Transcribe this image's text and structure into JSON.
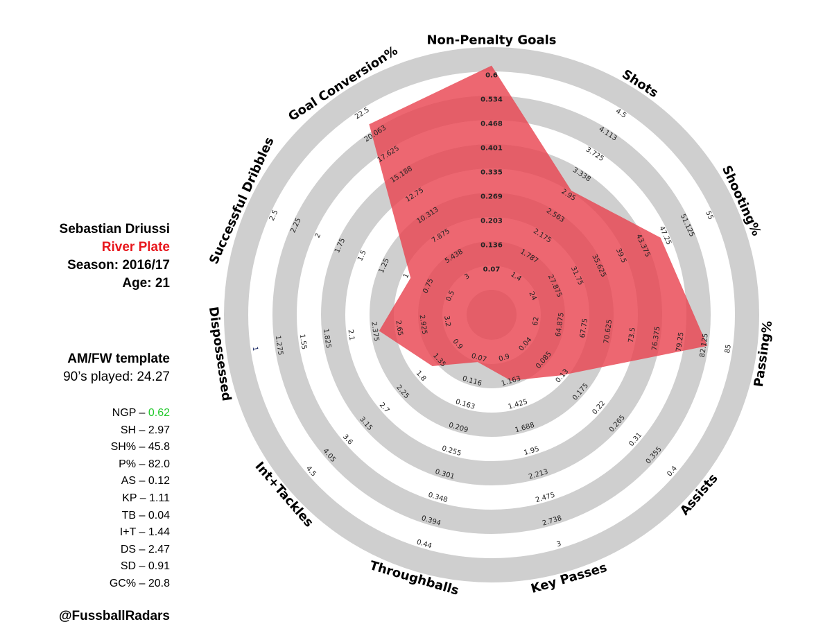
{
  "player": {
    "name": "Sebastian Driussi",
    "club": "River Plate",
    "season": "Season: 2016/17",
    "age": "Age: 21",
    "template": "AM/FW template",
    "played": "90’s played: 24.27"
  },
  "stats": [
    {
      "label": "NGP – ",
      "value": "0.62",
      "highlight": true
    },
    {
      "label": "SH – ",
      "value": "2.97"
    },
    {
      "label": "SH% – ",
      "value": "45.8"
    },
    {
      "label": "P% – ",
      "value": "82.0"
    },
    {
      "label": "AS – ",
      "value": "0.12"
    },
    {
      "label": "KP – ",
      "value": "1.11"
    },
    {
      "label": "TB – ",
      "value": "0.04"
    },
    {
      "label": "I+T – ",
      "value": "1.44"
    },
    {
      "label": "DS – ",
      "value": "2.47"
    },
    {
      "label": "SD – ",
      "value": "0.91"
    },
    {
      "label": "GC% – ",
      "value": "20.8"
    }
  ],
  "credit": "@FussballRadars",
  "colors": {
    "club": "#e8171d",
    "highlight": "#22c92c",
    "ring": "#cfcfcf",
    "fill": "#e8414e",
    "tick_dark": "#0a1a5a"
  },
  "chart_data": {
    "type": "radar",
    "axes": [
      {
        "name": "Non-Penalty Goals",
        "ticks": [
          "0.07",
          "0.136",
          "0.203",
          "0.269",
          "0.335",
          "0.401",
          "0.468",
          "0.534",
          "0.6"
        ],
        "value": 0.62
      },
      {
        "name": "Shots",
        "ticks": [
          "1.4",
          "1.787",
          "2.175",
          "2.563",
          "2.95",
          "3.338",
          "3.725",
          "4.113",
          "4.5"
        ],
        "value": 2.97
      },
      {
        "name": "Shooting%",
        "ticks": [
          "24",
          "27.875",
          "31.75",
          "35.625",
          "39.5",
          "43.375",
          "47.25",
          "51.125",
          "55"
        ],
        "value": 45.8
      },
      {
        "name": "Passing%",
        "ticks": [
          "62",
          "64.875",
          "67.75",
          "70.625",
          "73.5",
          "76.375",
          "79.25",
          "82.125",
          "85"
        ],
        "value": 82.0
      },
      {
        "name": "Assists",
        "ticks": [
          "0.04",
          "0.085",
          "0.13",
          "0.175",
          "0.22",
          "0.265",
          "0.31",
          "0.355",
          "0.4"
        ],
        "value": 0.12
      },
      {
        "name": "Key Passes",
        "ticks": [
          "0.9",
          "1.163",
          "1.425",
          "1.688",
          "1.95",
          "2.213",
          "2.475",
          "2.738",
          "3"
        ],
        "value": 1.11
      },
      {
        "name": "Throughballs",
        "ticks": [
          "0.07",
          "0.116",
          "0.163",
          "0.209",
          "0.255",
          "0.301",
          "0.348",
          "0.394",
          "0.44"
        ],
        "value": 0.04
      },
      {
        "name": "Int+Tackles",
        "ticks": [
          "0.9",
          "1.35",
          "1.8",
          "2.25",
          "2.7",
          "3.15",
          "3.6",
          "4.05",
          "4.5"
        ],
        "value": 1.44
      },
      {
        "name": "Dispossessed",
        "ticks": [
          "3.2",
          "2.925",
          "2.65",
          "2.375",
          "2.1",
          "1.825",
          "1.55",
          "1.275",
          "1"
        ],
        "value": 2.47
      },
      {
        "name": "Successful Dribbles",
        "ticks": [
          "0.5",
          "0.75",
          "1",
          "1.25",
          "1.5",
          "1.75",
          "2",
          "2.25",
          "2.5"
        ],
        "value": 0.91
      },
      {
        "name": "Goal Conversion%",
        "ticks": [
          "3",
          "5.438",
          "7.875",
          "10.313",
          "12.75",
          "15.188",
          "17.625",
          "20.063",
          "22.5"
        ],
        "value": 20.8
      }
    ]
  }
}
